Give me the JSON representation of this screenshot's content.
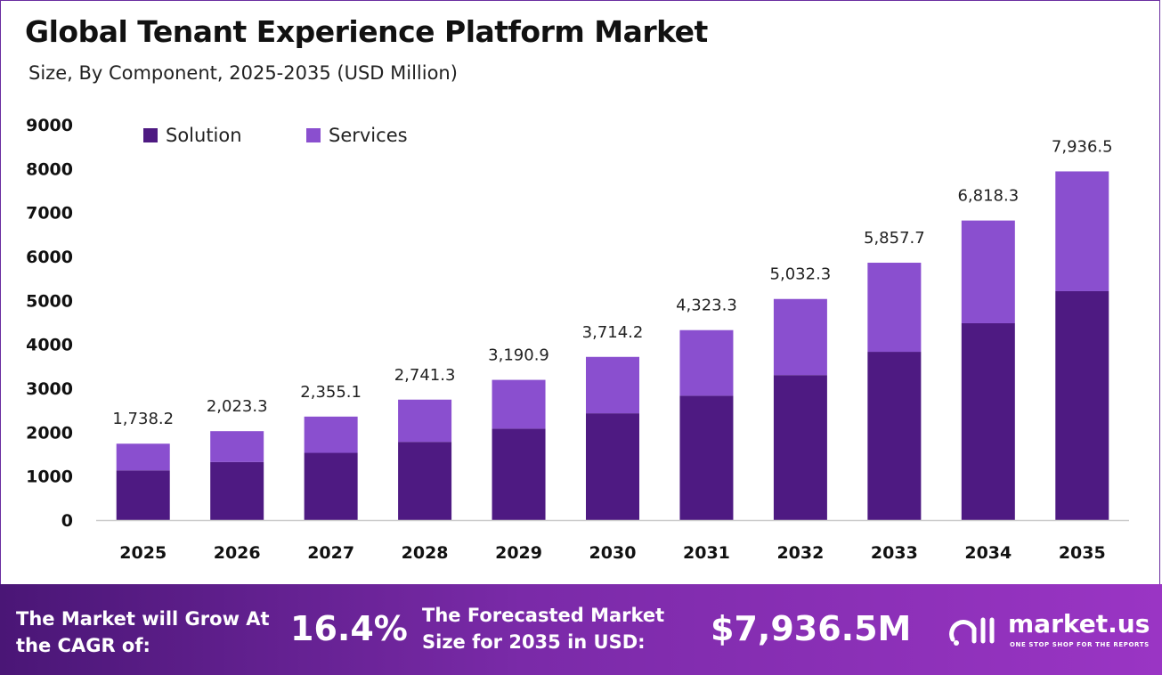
{
  "header": {
    "title": "Global Tenant Experience Platform Market",
    "subtitle": "Size, By Component, 2025-2035 (USD Million)"
  },
  "chart_data": {
    "type": "bar",
    "stacked": true,
    "categories": [
      "2025",
      "2026",
      "2027",
      "2028",
      "2029",
      "2030",
      "2031",
      "2032",
      "2033",
      "2034",
      "2035"
    ],
    "series": [
      {
        "name": "Solution",
        "color": "#4e1a82",
        "values": [
          1130,
          1320,
          1530,
          1780,
          2080,
          2430,
          2830,
          3300,
          3830,
          4480,
          5210
        ]
      },
      {
        "name": "Services",
        "color": "#8a4fcf",
        "values": [
          608.2,
          703.3,
          825.1,
          961.3,
          1110.9,
          1284.2,
          1493.3,
          1732.3,
          2027.7,
          2338.3,
          2726.5
        ]
      }
    ],
    "totals_labels": [
      "1,738.2",
      "2,023.3",
      "2,355.1",
      "2,741.3",
      "3,190.9",
      "3,714.2",
      "4,323.3",
      "5,032.3",
      "5,857.7",
      "6,818.3",
      "7,936.5"
    ],
    "totals": [
      1738.2,
      2023.3,
      2355.1,
      2741.3,
      3190.9,
      3714.2,
      4323.3,
      5032.3,
      5857.7,
      6818.3,
      7936.5
    ],
    "yticks": [
      0,
      1000,
      2000,
      3000,
      4000,
      5000,
      6000,
      7000,
      8000,
      9000
    ],
    "ylim": [
      0,
      9000
    ],
    "grid": false,
    "legend_position": "top-left"
  },
  "banner": {
    "cagr_label": "The Market will Grow At the CAGR of:",
    "cagr_value": "16.4%",
    "forecast_label": "The Forecasted Market Size for 2035 in USD:",
    "forecast_value": "$7,936.5M",
    "brand_name": "market.us",
    "brand_tagline": "ONE STOP SHOP FOR THE REPORTS"
  }
}
